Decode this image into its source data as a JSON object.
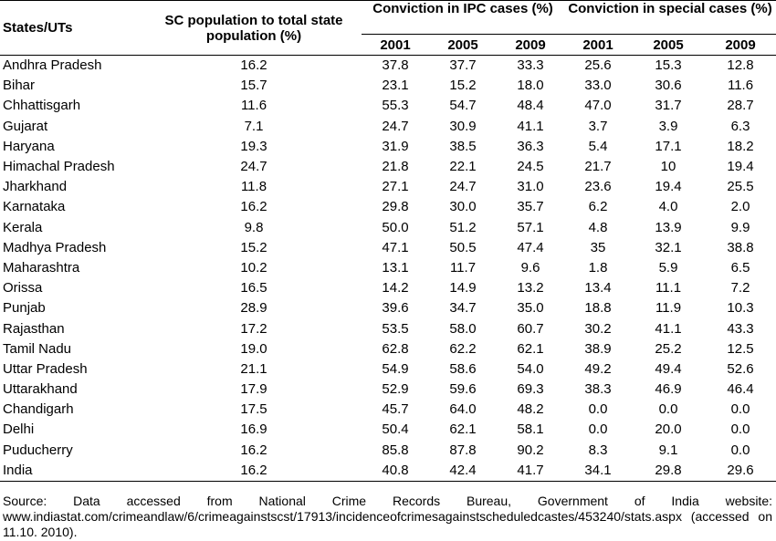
{
  "headers": {
    "state": "States/UTs",
    "sc_population": "SC population to total state population (%)",
    "ipc": "Conviction in IPC cases (%)",
    "special": "Conviction in special cases (%)",
    "years": [
      "2001",
      "2005",
      "2009"
    ]
  },
  "rows": [
    {
      "state": "Andhra Pradesh",
      "sc": "16.2",
      "ipc": [
        "37.8",
        "37.7",
        "33.3"
      ],
      "special": [
        "25.6",
        "15.3",
        "12.8"
      ]
    },
    {
      "state": "Bihar",
      "sc": "15.7",
      "ipc": [
        "23.1",
        "15.2",
        "18.0"
      ],
      "special": [
        "33.0",
        "30.6",
        "11.6"
      ]
    },
    {
      "state": "Chhattisgarh",
      "sc": "11.6",
      "ipc": [
        "55.3",
        "54.7",
        "48.4"
      ],
      "special": [
        "47.0",
        "31.7",
        "28.7"
      ]
    },
    {
      "state": "Gujarat",
      "sc": "7.1",
      "ipc": [
        "24.7",
        "30.9",
        "41.1"
      ],
      "special": [
        "3.7",
        "3.9",
        "6.3"
      ]
    },
    {
      "state": "Haryana",
      "sc": "19.3",
      "ipc": [
        "31.9",
        "38.5",
        "36.3"
      ],
      "special": [
        "5.4",
        "17.1",
        "18.2"
      ]
    },
    {
      "state": "Himachal Pradesh",
      "sc": "24.7",
      "ipc": [
        "21.8",
        "22.1",
        "24.5"
      ],
      "special": [
        "21.7",
        "10",
        "19.4"
      ]
    },
    {
      "state": "Jharkhand",
      "sc": "11.8",
      "ipc": [
        "27.1",
        "24.7",
        "31.0"
      ],
      "special": [
        "23.6",
        "19.4",
        "25.5"
      ]
    },
    {
      "state": "Karnataka",
      "sc": "16.2",
      "ipc": [
        "29.8",
        "30.0",
        "35.7"
      ],
      "special": [
        "6.2",
        "4.0",
        "2.0"
      ]
    },
    {
      "state": "Kerala",
      "sc": "9.8",
      "ipc": [
        "50.0",
        "51.2",
        "57.1"
      ],
      "special": [
        "4.8",
        "13.9",
        "9.9"
      ]
    },
    {
      "state": "Madhya Pradesh",
      "sc": "15.2",
      "ipc": [
        "47.1",
        "50.5",
        "47.4"
      ],
      "special": [
        "35",
        "32.1",
        "38.8"
      ]
    },
    {
      "state": "Maharashtra",
      "sc": "10.2",
      "ipc": [
        "13.1",
        "11.7",
        "9.6"
      ],
      "special": [
        "1.8",
        "5.9",
        "6.5"
      ]
    },
    {
      "state": "Orissa",
      "sc": "16.5",
      "ipc": [
        "14.2",
        "14.9",
        "13.2"
      ],
      "special": [
        "13.4",
        "11.1",
        "7.2"
      ]
    },
    {
      "state": "Punjab",
      "sc": "28.9",
      "ipc": [
        "39.6",
        "34.7",
        "35.0"
      ],
      "special": [
        "18.8",
        "11.9",
        "10.3"
      ]
    },
    {
      "state": "Rajasthan",
      "sc": "17.2",
      "ipc": [
        "53.5",
        "58.0",
        "60.7"
      ],
      "special": [
        "30.2",
        "41.1",
        "43.3"
      ]
    },
    {
      "state": "Tamil Nadu",
      "sc": "19.0",
      "ipc": [
        "62.8",
        "62.2",
        "62.1"
      ],
      "special": [
        "38.9",
        "25.2",
        "12.5"
      ]
    },
    {
      "state": "Uttar Pradesh",
      "sc": "21.1",
      "ipc": [
        "54.9",
        "58.6",
        "54.0"
      ],
      "special": [
        "49.2",
        "49.4",
        "52.6"
      ]
    },
    {
      "state": "Uttarakhand",
      "sc": "17.9",
      "ipc": [
        "52.9",
        "59.6",
        "69.3"
      ],
      "special": [
        "38.3",
        "46.9",
        "46.4"
      ]
    },
    {
      "state": "Chandigarh",
      "sc": "17.5",
      "ipc": [
        "45.7",
        "64.0",
        "48.2"
      ],
      "special": [
        "0.0",
        "0.0",
        "0.0"
      ]
    },
    {
      "state": "Delhi",
      "sc": "16.9",
      "ipc": [
        "50.4",
        "62.1",
        "58.1"
      ],
      "special": [
        "0.0",
        "20.0",
        "0.0"
      ]
    },
    {
      "state": "Puducherry",
      "sc": "16.2",
      "ipc": [
        "85.8",
        "87.8",
        "90.2"
      ],
      "special": [
        "8.3",
        "9.1",
        "0.0"
      ]
    },
    {
      "state": "India",
      "sc": "16.2",
      "ipc": [
        "40.8",
        "42.4",
        "41.7"
      ],
      "special": [
        "34.1",
        "29.8",
        "29.6"
      ]
    }
  ],
  "source": "Source: Data accessed from National Crime Records Bureau, Government of India website: www.indiastat.com/crimeandlaw/6/crimeagainstscst/17913/incidenceofcrimesagainstscheduledcastes/453240/stats.aspx (accessed on 11.10. 2010)."
}
